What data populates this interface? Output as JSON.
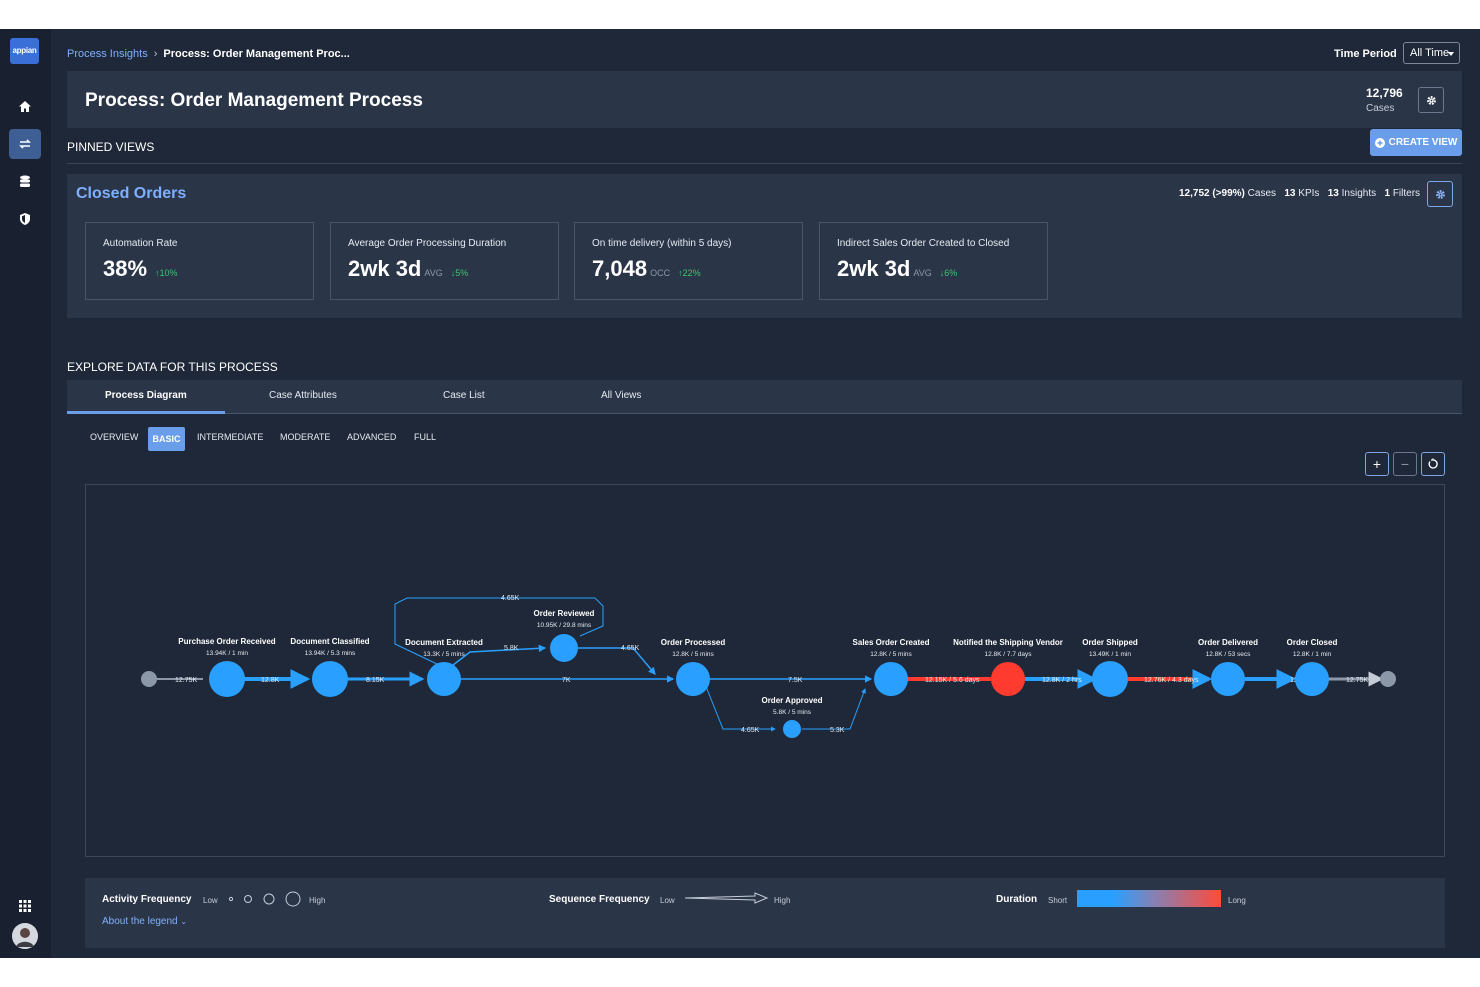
{
  "app": {
    "logo_text": "appian"
  },
  "breadcrumb": {
    "parent": "Process Insights",
    "current": "Process: Order Management Proc..."
  },
  "time_period": {
    "label": "Time Period",
    "value": "All Time"
  },
  "header": {
    "title": "Process: Order Management Process",
    "cases_count": "12,796",
    "cases_label": "Cases"
  },
  "pinned": {
    "label": "PINNED VIEWS",
    "create_view_label": "CREATE VIEW"
  },
  "view": {
    "title": "Closed Orders",
    "stats": {
      "cases": "12,752 (>99%)",
      "cases_label": "Cases",
      "kpis": "13",
      "kpis_label": "KPIs",
      "insights": "13",
      "insights_label": "Insights",
      "filters": "1",
      "filters_label": "Filters"
    },
    "kpis": [
      {
        "label": "Automation Rate",
        "value": "38%",
        "unit": "",
        "change": "10%",
        "direction": "up"
      },
      {
        "label": "Average Order Processing Duration",
        "value": "2wk 3d",
        "unit": "AVG",
        "change": "5%",
        "direction": "down"
      },
      {
        "label": "On time delivery (within 5 days)",
        "value": "7,048",
        "unit": "OCC",
        "change": "22%",
        "direction": "up"
      },
      {
        "label": "Indirect Sales Order Created to Closed",
        "value": "2wk 3d",
        "unit": "AVG",
        "change": "6%",
        "direction": "down"
      }
    ]
  },
  "explore": {
    "label": "EXPLORE DATA FOR THIS PROCESS",
    "tabs": [
      "Process Diagram",
      "Case Attributes",
      "Case List",
      "All Views"
    ],
    "active_tab": "Process Diagram",
    "levels": [
      "OVERVIEW",
      "BASIC",
      "INTERMEDIATE",
      "MODERATE",
      "ADVANCED",
      "FULL"
    ],
    "active_level": "BASIC",
    "zoom": {
      "in": "+",
      "out": "−"
    }
  },
  "diagram": {
    "nodes": [
      {
        "name": "Purchase Order Received",
        "stat": "13.94K / 1 min",
        "color": "#29a0ff"
      },
      {
        "name": "Document Classified",
        "stat": "13.94K / 5.3 mins",
        "color": "#29a0ff"
      },
      {
        "name": "Document Extracted",
        "stat": "13.3K / 5 mins",
        "color": "#29a0ff"
      },
      {
        "name": "Order Reviewed",
        "stat": "10.95K / 29.8 mins",
        "color": "#29a0ff"
      },
      {
        "name": "Order Processed",
        "stat": "12.8K / 5 mins",
        "color": "#29a0ff"
      },
      {
        "name": "Order Approved",
        "stat": "5.8K / 5 mins",
        "color": "#29a0ff"
      },
      {
        "name": "Sales Order Created",
        "stat": "12.8K / 5 mins",
        "color": "#29a0ff"
      },
      {
        "name": "Notified the Shipping Vendor",
        "stat": "12.8K / 7.7 days",
        "color": "#ff3b30"
      },
      {
        "name": "Order Shipped",
        "stat": "13.49K / 1 min",
        "color": "#29a0ff"
      },
      {
        "name": "Order Delivered",
        "stat": "12.8K / 53 secs",
        "color": "#29a0ff"
      },
      {
        "name": "Order Closed",
        "stat": "12.8K / 1 min",
        "color": "#29a0ff"
      }
    ],
    "edges": {
      "start": "12.75K",
      "e1": "12.8K",
      "e2": "8.15K",
      "loop": "4.65K",
      "to_review": "5.8K",
      "from_review": "4.65K",
      "main": "7K",
      "to_sales": "7.5K",
      "to_approve": "4.65K",
      "from_approve": "5.3K",
      "sales_notify": "12.15K / 5.6 days",
      "notify_ship": "12.8K / 2 hrs",
      "ship_deliver": "12.76K / 4.3 days",
      "deliver_close": "12.07K",
      "end": "12.75K"
    }
  },
  "legend": {
    "activity_title": "Activity Frequency",
    "activity_low": "Low",
    "activity_high": "High",
    "sequence_title": "Sequence Frequency",
    "sequence_low": "Low",
    "sequence_high": "High",
    "duration_title": "Duration",
    "duration_short": "Short",
    "duration_long": "Long",
    "about": "About the legend"
  }
}
